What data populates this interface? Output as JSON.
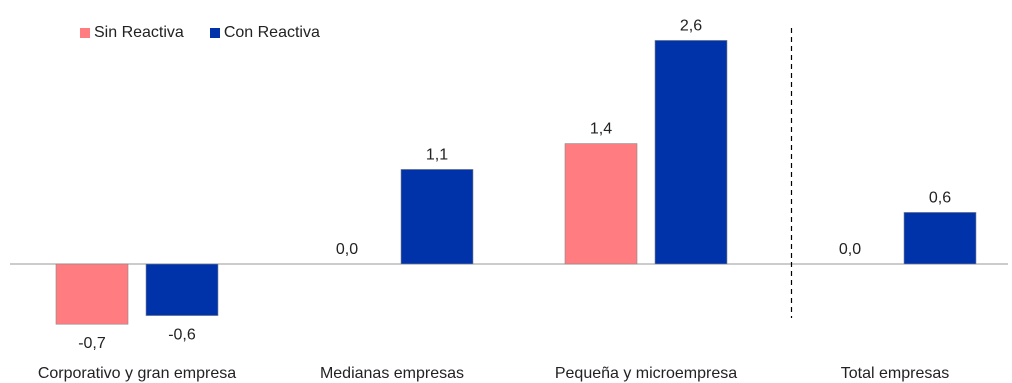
{
  "chart_data": {
    "type": "bar",
    "categories": [
      "Corporativo y gran empresa",
      "Medianas empresas",
      "Pequeña y microempresa",
      "Total empresas"
    ],
    "series": [
      {
        "name": "Sin Reactiva",
        "color": "#FF7C80",
        "values": [
          -0.7,
          0.0,
          1.4,
          0.0
        ],
        "labels": [
          "-0,7",
          "0,0",
          "1,4",
          "0,0"
        ]
      },
      {
        "name": "Con Reactiva",
        "color": "#0033AA",
        "values": [
          -0.6,
          1.1,
          2.6,
          0.6
        ],
        "labels": [
          "-0,6",
          "1,1",
          "2,6",
          "0,6"
        ]
      }
    ],
    "ylim": [
      -0.85,
      2.85
    ],
    "legend_position": "top-left",
    "grid": false,
    "separator_before_last_category": true
  }
}
